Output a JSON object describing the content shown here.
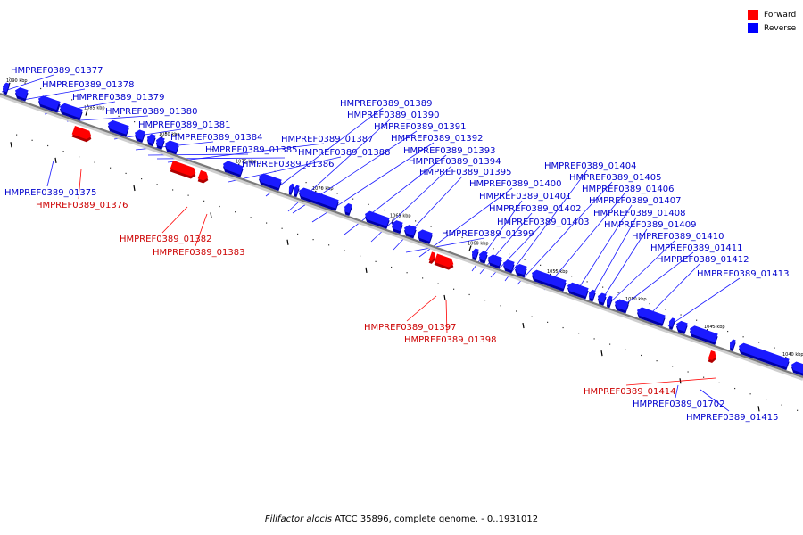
{
  "legend": {
    "forward_label": "Forward",
    "reverse_label": "Reverse",
    "forward_color": "#ff0000",
    "reverse_color": "#0000ff"
  },
  "colors": {
    "forward": "#ff0000",
    "forward_dark": "#b00000",
    "reverse": "#1a1aff",
    "reverse_dark": "#0000a8",
    "backbone": "#888888",
    "forward_label": "#cc0000",
    "reverse_label": "#0000cc"
  },
  "caption": {
    "organism": "Filifactor alocis",
    "rest": " ATCC 35896, complete genome. - 0..1931012"
  },
  "scale_ticks": [
    {
      "label": "1090 kbp"
    },
    {
      "label": "1085 kbp"
    },
    {
      "label": "1080 kbp"
    },
    {
      "label": "1075 kbp"
    },
    {
      "label": "1070 kbp"
    },
    {
      "label": "1065 kbp"
    },
    {
      "label": "1060 kbp"
    },
    {
      "label": "1055 kbp"
    },
    {
      "label": "1050 kbp"
    },
    {
      "label": "1045 kbp"
    },
    {
      "label": "1040 kbp"
    }
  ],
  "genes": [
    {
      "label": "HMPREF0389_01375",
      "strand": "reverse"
    },
    {
      "label": "HMPREF0389_01376",
      "strand": "forward"
    },
    {
      "label": "HMPREF0389_01377",
      "strand": "reverse"
    },
    {
      "label": "HMPREF0389_01378",
      "strand": "reverse"
    },
    {
      "label": "HMPREF0389_01379",
      "strand": "reverse"
    },
    {
      "label": "HMPREF0389_01380",
      "strand": "reverse"
    },
    {
      "label": "HMPREF0389_01381",
      "strand": "reverse"
    },
    {
      "label": "HMPREF0389_01382",
      "strand": "forward"
    },
    {
      "label": "HMPREF0389_01383",
      "strand": "forward"
    },
    {
      "label": "HMPREF0389_01384",
      "strand": "reverse"
    },
    {
      "label": "HMPREF0389_01385",
      "strand": "reverse"
    },
    {
      "label": "HMPREF0389_01386",
      "strand": "reverse"
    },
    {
      "label": "HMPREF0389_01387",
      "strand": "reverse"
    },
    {
      "label": "HMPREF0389_01388",
      "strand": "reverse"
    },
    {
      "label": "HMPREF0389_01389",
      "strand": "reverse"
    },
    {
      "label": "HMPREF0389_01390",
      "strand": "reverse"
    },
    {
      "label": "HMPREF0389_01391",
      "strand": "reverse"
    },
    {
      "label": "HMPREF0389_01392",
      "strand": "reverse"
    },
    {
      "label": "HMPREF0389_01393",
      "strand": "reverse"
    },
    {
      "label": "HMPREF0389_01394",
      "strand": "reverse"
    },
    {
      "label": "HMPREF0389_01395",
      "strand": "reverse"
    },
    {
      "label": "HMPREF0389_01397",
      "strand": "forward"
    },
    {
      "label": "HMPREF0389_01398",
      "strand": "forward"
    },
    {
      "label": "HMPREF0389_01399",
      "strand": "reverse"
    },
    {
      "label": "HMPREF0389_01400",
      "strand": "reverse"
    },
    {
      "label": "HMPREF0389_01401",
      "strand": "reverse"
    },
    {
      "label": "HMPREF0389_01402",
      "strand": "reverse"
    },
    {
      "label": "HMPREF0389_01403",
      "strand": "reverse"
    },
    {
      "label": "HMPREF0389_01404",
      "strand": "reverse"
    },
    {
      "label": "HMPREF0389_01405",
      "strand": "reverse"
    },
    {
      "label": "HMPREF0389_01406",
      "strand": "reverse"
    },
    {
      "label": "HMPREF0389_01407",
      "strand": "reverse"
    },
    {
      "label": "HMPREF0389_01408",
      "strand": "reverse"
    },
    {
      "label": "HMPREF0389_01409",
      "strand": "reverse"
    },
    {
      "label": "HMPREF0389_01410",
      "strand": "reverse"
    },
    {
      "label": "HMPREF0389_01411",
      "strand": "reverse"
    },
    {
      "label": "HMPREF0389_01412",
      "strand": "reverse"
    },
    {
      "label": "HMPREF0389_01413",
      "strand": "reverse"
    },
    {
      "label": "HMPREF0389_01414",
      "strand": "forward"
    },
    {
      "label": "HMPREF0389_01702",
      "strand": "reverse"
    },
    {
      "label": "HMPREF0389_01415",
      "strand": "reverse"
    }
  ]
}
